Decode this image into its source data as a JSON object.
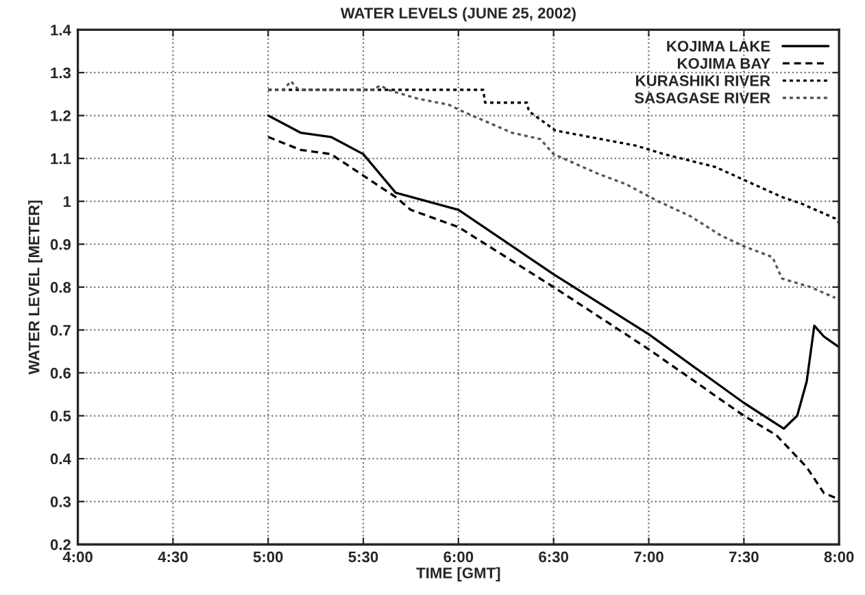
{
  "chart_data": {
    "type": "line",
    "title": "WATER LEVELS (JUNE 25, 2002)",
    "xlabel": "TIME [GMT]",
    "ylabel": "WATER LEVEL [METER]",
    "xlim": [
      4,
      8
    ],
    "xticks": [
      {
        "value": 4,
        "label": "4:00"
      },
      {
        "value": 4.5,
        "label": "4:30"
      },
      {
        "value": 5,
        "label": "5:00"
      },
      {
        "value": 5.5,
        "label": "5:30"
      },
      {
        "value": 6,
        "label": "6:00"
      },
      {
        "value": 6.5,
        "label": "6:30"
      },
      {
        "value": 7,
        "label": "7:00"
      },
      {
        "value": 7.5,
        "label": "7:30"
      },
      {
        "value": 8,
        "label": "8:00"
      }
    ],
    "ylim": [
      0.2,
      1.4
    ],
    "yticks": [
      0.2,
      0.3,
      0.4,
      0.5,
      0.6,
      0.7,
      0.8,
      0.9,
      1,
      1.1,
      1.2,
      1.3,
      1.4
    ],
    "grid": true,
    "legend": "top right",
    "series": [
      {
        "name": "KOJIMA LAKE",
        "color": "#000000",
        "line_style": "solid",
        "x": [
          5,
          5.17,
          5.33,
          5.5,
          5.67,
          6,
          6.5,
          7,
          7.5,
          7.71,
          7.78,
          7.83,
          7.87,
          7.92,
          8
        ],
        "values": [
          1.2,
          1.16,
          1.15,
          1.11,
          1.02,
          0.98,
          0.83,
          0.69,
          0.53,
          0.47,
          0.5,
          0.58,
          0.71,
          0.685,
          0.66
        ]
      },
      {
        "name": "KOJIMA BAY",
        "color": "#000000",
        "line_style": "dashed",
        "x": [
          5,
          5.17,
          5.33,
          5.5,
          5.67,
          5.75,
          6,
          6.5,
          7,
          7.5,
          7.67,
          7.83,
          7.92,
          8
        ],
        "values": [
          1.15,
          1.12,
          1.11,
          1.06,
          1.01,
          0.98,
          0.94,
          0.8,
          0.655,
          0.5,
          0.455,
          0.38,
          0.32,
          0.305
        ]
      },
      {
        "name": "KURASHIKI RIVER",
        "color": "#000000",
        "line_style": "dotted",
        "x": [
          5,
          6.13,
          6.14,
          6.36,
          6.37,
          6.51,
          6.57,
          6.93,
          7.08,
          7.35,
          7.55,
          7.7,
          7.8,
          7.98,
          8
        ],
        "values": [
          1.26,
          1.26,
          1.23,
          1.23,
          1.21,
          1.165,
          1.16,
          1.13,
          1.11,
          1.08,
          1.04,
          1.01,
          0.995,
          0.96,
          0.95
        ]
      },
      {
        "name": "SASAGASE RIVER",
        "color": "#555555",
        "line_style": "dotted",
        "x": [
          5,
          5.08,
          5.12,
          5.16,
          5.55,
          5.59,
          5.63,
          5.78,
          5.95,
          6.02,
          6.28,
          6.43,
          6.5,
          6.73,
          6.88,
          7.05,
          7.22,
          7.38,
          7.5,
          7.65,
          7.7,
          7.85,
          7.98
        ],
        "values": [
          1.26,
          1.26,
          1.28,
          1.26,
          1.26,
          1.27,
          1.26,
          1.24,
          1.225,
          1.21,
          1.16,
          1.145,
          1.11,
          1.065,
          1.04,
          1.0,
          0.965,
          0.92,
          0.895,
          0.87,
          0.82,
          0.8,
          0.775
        ]
      }
    ]
  }
}
